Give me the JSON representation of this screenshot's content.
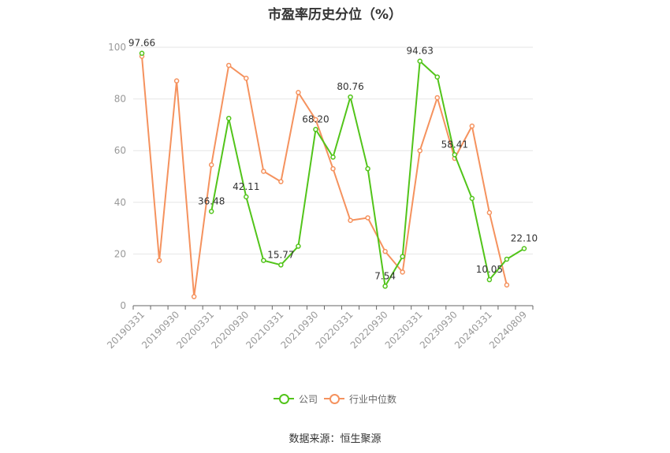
{
  "chart_data": {
    "type": "line",
    "title": "市盈率历史分位（%）",
    "source": "数据来源：恒生聚源",
    "ylim": [
      0,
      100
    ],
    "yticks": [
      0,
      20,
      40,
      60,
      80,
      100
    ],
    "grid": true,
    "legend_position": "bottom",
    "x": [
      "20190331",
      "20190630",
      "20190930",
      "20191231",
      "20200331",
      "20200630",
      "20200930",
      "20201231",
      "20210331",
      "20210630",
      "20210930",
      "20211231",
      "20220331",
      "20220630",
      "20220930",
      "20221231",
      "20230331",
      "20230630",
      "20230930",
      "20231231",
      "20240331",
      "20240630",
      "20240809"
    ],
    "x_tick_labels": [
      "20190331",
      "20190930",
      "20200331",
      "20200930",
      "20210331",
      "20210930",
      "20220331",
      "20220930",
      "20230331",
      "20230930",
      "20240331",
      "20240809"
    ],
    "series": [
      {
        "name": "公司",
        "color": "#52c41a",
        "values": [
          97.66,
          null,
          null,
          null,
          36.48,
          72.5,
          42.11,
          17.5,
          15.77,
          23.0,
          68.2,
          57.5,
          80.76,
          53.0,
          7.54,
          19.0,
          94.63,
          88.5,
          58.41,
          41.5,
          10.05,
          18.0,
          22.1
        ],
        "labels": {
          "0": "97.66",
          "4": "36.48",
          "6": "42.11",
          "8": "15.77",
          "10": "68.20",
          "12": "80.76",
          "14": "7.54",
          "16": "94.63",
          "18": "58.41",
          "20": "10.05",
          "22": "22.10"
        }
      },
      {
        "name": "行业中位数",
        "color": "#f5925e",
        "values": [
          96.5,
          17.5,
          87.0,
          3.5,
          54.5,
          93.0,
          88.0,
          52.0,
          48.0,
          82.5,
          72.0,
          53.0,
          33.0,
          34.0,
          21.0,
          13.0,
          60.0,
          80.5,
          57.0,
          69.5,
          36.0,
          8.0,
          null
        ]
      }
    ]
  }
}
